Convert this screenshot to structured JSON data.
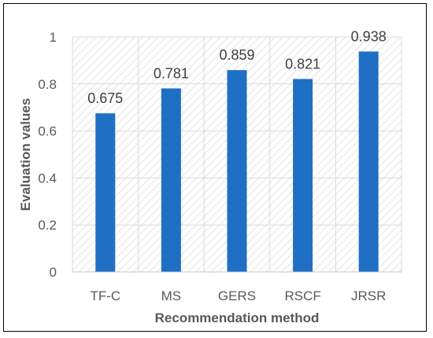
{
  "chart_data": {
    "type": "bar",
    "title": "",
    "xlabel": "Recommendation method",
    "ylabel": "Evaluation values",
    "categories": [
      "TF-C",
      "MS",
      "GERS",
      "RSCF",
      "JRSR"
    ],
    "values": [
      0.675,
      0.781,
      0.859,
      0.821,
      0.938
    ],
    "data_labels": [
      "0.675",
      "0.781",
      "0.859",
      "0.821",
      "0.938"
    ],
    "ylim": [
      0,
      1
    ],
    "yticks": [
      "0",
      "0.2",
      "0.4",
      "0.6",
      "0.8",
      "1"
    ],
    "grid": true,
    "plot_background": "diagonal-hatch",
    "bar_color": "#1f6fc5",
    "grid_color": "#d9d9d9",
    "hatch_color": "#e3e3e3",
    "text_color": "#595959"
  }
}
